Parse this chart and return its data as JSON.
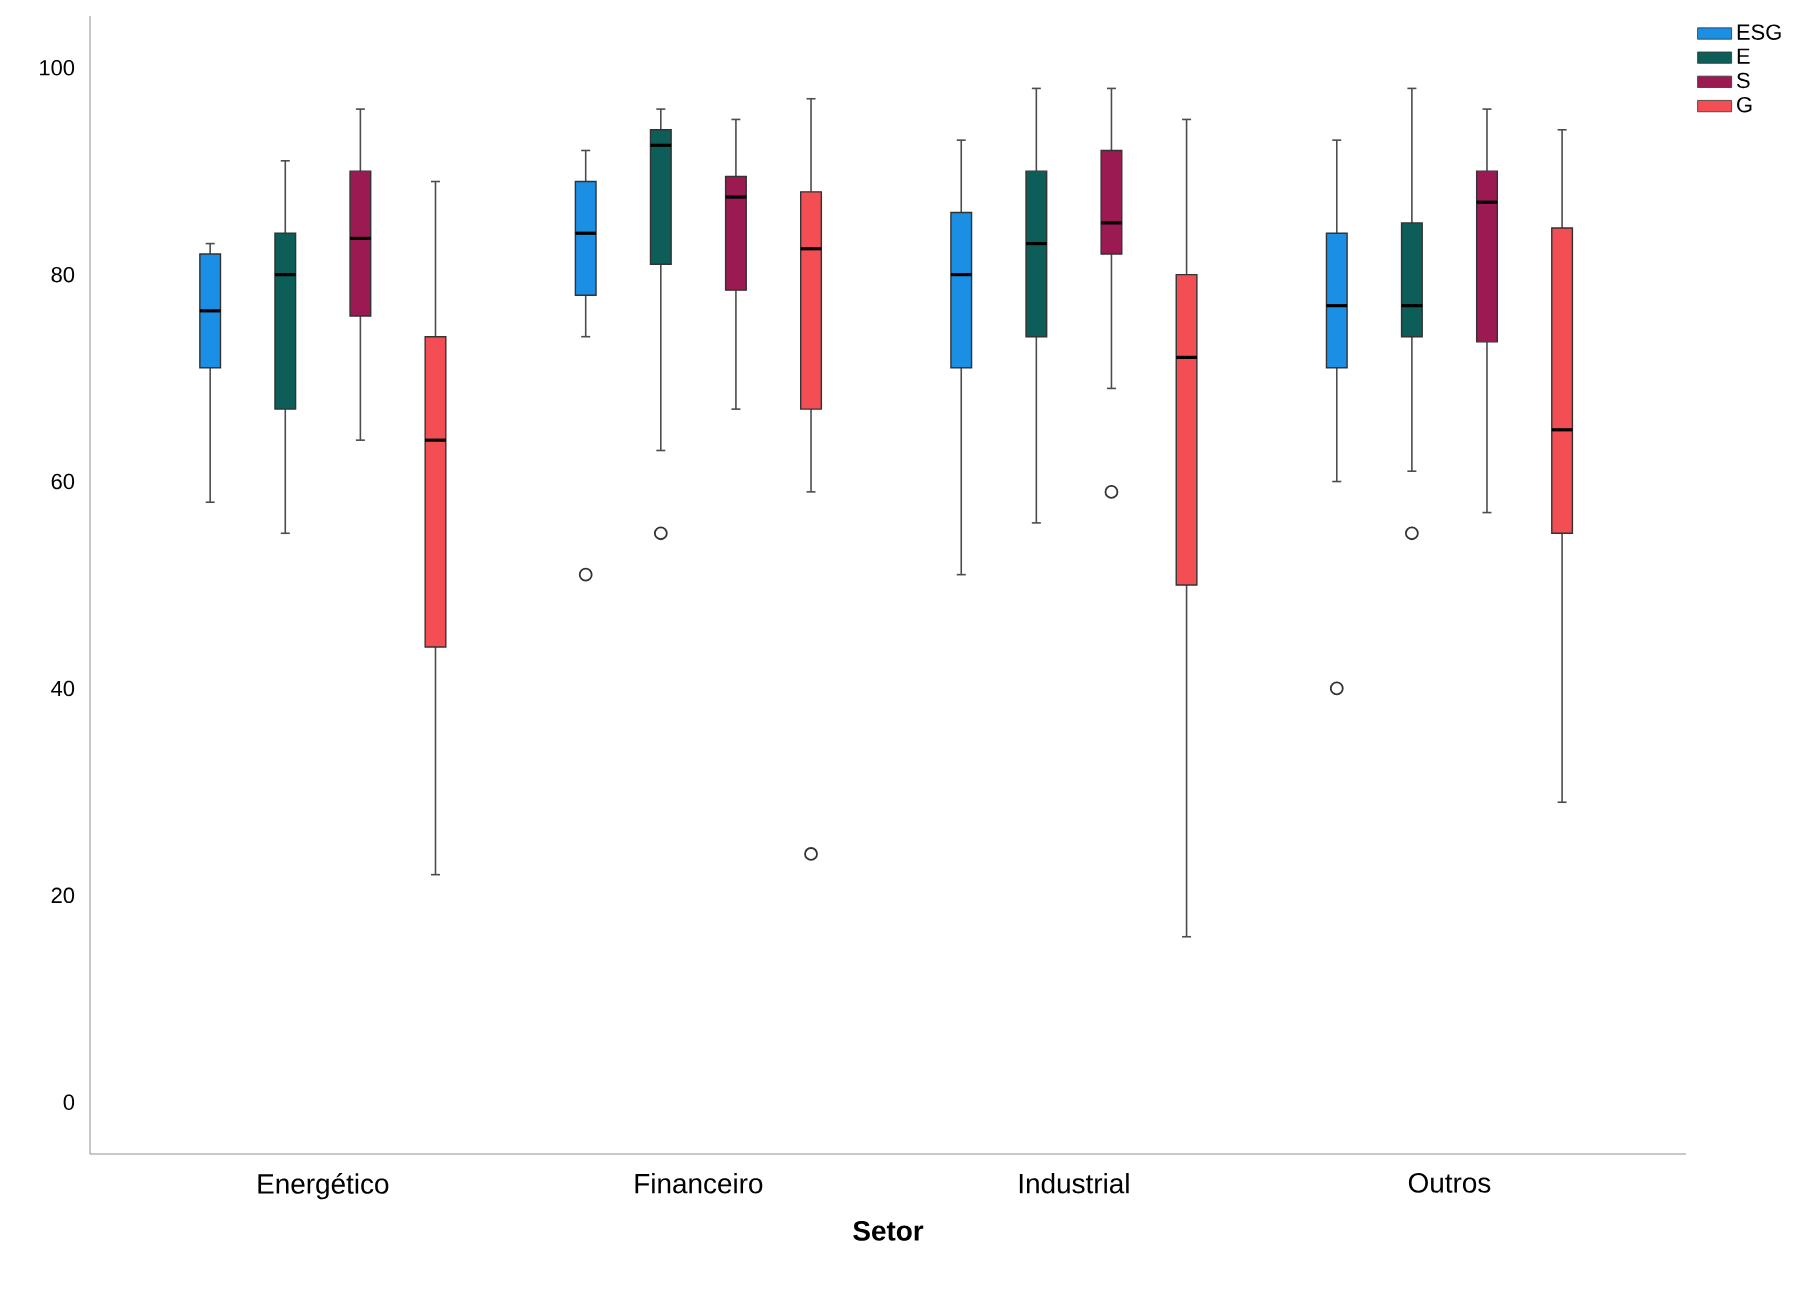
{
  "chart_data": {
    "type": "box",
    "xlabel": "Setor",
    "categories": [
      "Energético",
      "Financeiro",
      "Industrial",
      "Outros"
    ],
    "series": [
      {
        "name": "ESG",
        "color": "#1a8fe3",
        "boxes": [
          {
            "low": 58,
            "q1": 71,
            "median": 76.5,
            "q3": 82,
            "high": 83
          },
          {
            "low": 74,
            "q1": 78,
            "median": 84,
            "q3": 89,
            "high": 92,
            "outliers": [
              51
            ]
          },
          {
            "low": 51,
            "q1": 71,
            "median": 80,
            "q3": 86,
            "high": 93
          },
          {
            "low": 60,
            "q1": 71,
            "median": 77,
            "q3": 84,
            "high": 93,
            "outliers": [
              40
            ]
          }
        ]
      },
      {
        "name": "E",
        "color": "#0d5d58",
        "boxes": [
          {
            "low": 55,
            "q1": 67,
            "median": 80,
            "q3": 84,
            "high": 91
          },
          {
            "low": 63,
            "q1": 81,
            "median": 92.5,
            "q3": 94,
            "high": 96,
            "outliers": [
              55
            ]
          },
          {
            "low": 56,
            "q1": 74,
            "median": 83,
            "q3": 90,
            "high": 98
          },
          {
            "low": 61,
            "q1": 74,
            "median": 77,
            "q3": 85,
            "high": 98,
            "outliers": [
              55
            ]
          }
        ]
      },
      {
        "name": "S",
        "color": "#9c1a52",
        "boxes": [
          {
            "low": 64,
            "q1": 76,
            "median": 83.5,
            "q3": 90,
            "high": 96
          },
          {
            "low": 67,
            "q1": 78.5,
            "median": 87.5,
            "q3": 89.5,
            "high": 95
          },
          {
            "low": 69,
            "q1": 82,
            "median": 85,
            "q3": 92,
            "high": 98,
            "outliers": [
              59
            ]
          },
          {
            "low": 57,
            "q1": 73.5,
            "median": 87,
            "q3": 90,
            "high": 96
          }
        ]
      },
      {
        "name": "G",
        "color": "#f44e55",
        "boxes": [
          {
            "low": 22,
            "q1": 44,
            "median": 64,
            "q3": 74,
            "high": 89
          },
          {
            "low": 59,
            "q1": 67,
            "median": 82.5,
            "q3": 88,
            "high": 97,
            "outliers": [
              24
            ]
          },
          {
            "low": 16,
            "q1": 50,
            "median": 72,
            "q3": 80,
            "high": 95
          },
          {
            "low": 29,
            "q1": 55,
            "median": 65,
            "q3": 84.5,
            "high": 94
          }
        ]
      }
    ],
    "ylim": [
      -5,
      105
    ],
    "yticks": [
      0,
      20,
      40,
      60,
      80,
      100
    ],
    "grid": false,
    "legend": "top right"
  }
}
